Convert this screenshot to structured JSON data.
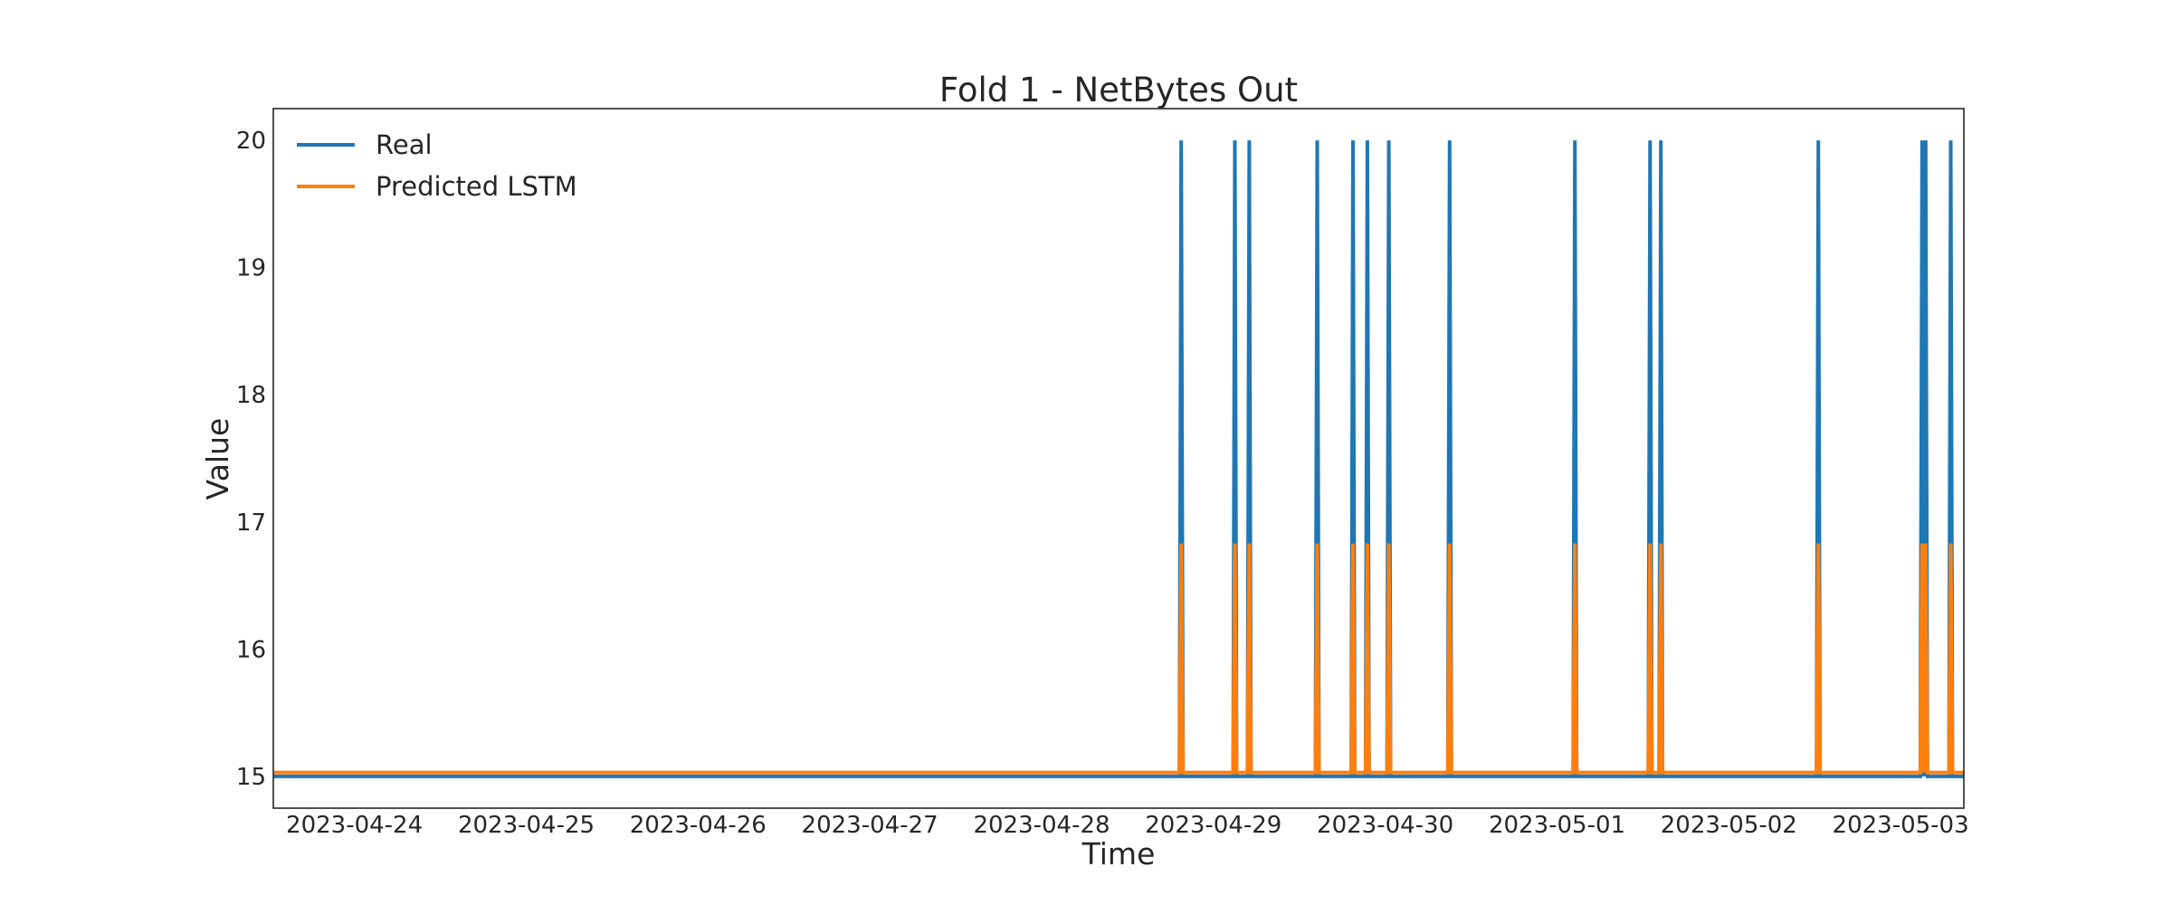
{
  "chart_data": {
    "type": "line",
    "title": "Fold 1 - NetBytes Out",
    "xlabel": "Time",
    "ylabel": "Value",
    "xlim": [
      "2023-04-23 12:40",
      "2023-05-03 08:50"
    ],
    "ylim": [
      14.75,
      20.25
    ],
    "x_ticks": [
      "2023-04-24",
      "2023-04-25",
      "2023-04-26",
      "2023-04-27",
      "2023-04-28",
      "2023-04-29",
      "2023-04-30",
      "2023-05-01",
      "2023-05-02",
      "2023-05-03"
    ],
    "y_ticks": [
      15,
      16,
      17,
      18,
      19,
      20
    ],
    "grid": false,
    "legend": "top-left",
    "baseline_start": "2023-04-23 12:00",
    "baseline_end": "2023-05-03 10:00",
    "series": [
      {
        "name": "Real",
        "color": "#1f77b4",
        "baseline": 15.0,
        "spike_value": 20.0,
        "spikes": [
          "2023-04-28 19:30",
          "2023-04-29 03:00",
          "2023-04-29 05:00",
          "2023-04-29 14:30",
          "2023-04-29 19:30",
          "2023-04-29 21:30",
          "2023-04-30 00:30",
          "2023-04-30 09:00",
          "2023-05-01 02:30",
          "2023-05-01 13:00",
          "2023-05-01 14:30",
          "2023-05-02 12:30",
          "2023-05-03 03:00",
          "2023-05-03 03:30",
          "2023-05-03 07:00"
        ]
      },
      {
        "name": "Predicted LSTM",
        "color": "#ff7f0e",
        "baseline": 15.03,
        "spike_value": 16.83,
        "spikes": [
          "2023-04-28 19:30",
          "2023-04-29 03:00",
          "2023-04-29 05:00",
          "2023-04-29 14:30",
          "2023-04-29 19:30",
          "2023-04-29 21:30",
          "2023-04-30 00:30",
          "2023-04-30 09:00",
          "2023-05-01 02:30",
          "2023-05-01 13:00",
          "2023-05-01 14:30",
          "2023-05-02 12:30",
          "2023-05-03 03:00",
          "2023-05-03 03:30",
          "2023-05-03 07:00"
        ]
      }
    ]
  }
}
